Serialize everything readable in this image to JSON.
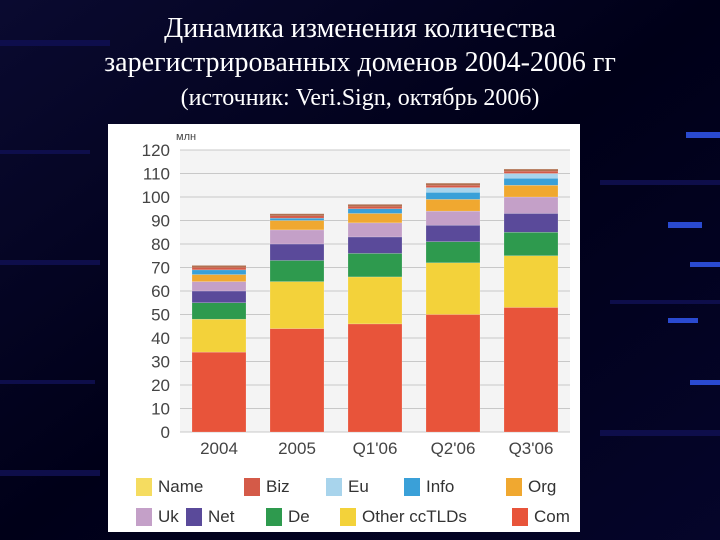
{
  "slide": {
    "title_line1": "Динамика изменения количества",
    "title_line2": "зарегистрированных доменов 2004-2006 гг",
    "subtitle": "(источник: Veri.Sign, октябрь 2006)"
  },
  "chart_data": {
    "type": "bar",
    "stacked": true,
    "ylabel": "млн",
    "ylim": [
      0,
      120
    ],
    "yticks": [
      0,
      10,
      20,
      30,
      40,
      50,
      60,
      70,
      80,
      90,
      100,
      110,
      120
    ],
    "grid": true,
    "legend_position": "bottom",
    "categories": [
      "2004",
      "2005",
      "Q1'06",
      "Q2'06",
      "Q3'06"
    ],
    "series": [
      {
        "name": "Com",
        "color": "#e8543a",
        "values": [
          34,
          44,
          46,
          50,
          53
        ]
      },
      {
        "name": "Other ccTLDs",
        "color": "#f3d23a",
        "values": [
          14,
          20,
          20,
          22,
          22
        ]
      },
      {
        "name": "De",
        "color": "#2e9a4e",
        "values": [
          7,
          9,
          10,
          9,
          10
        ]
      },
      {
        "name": "Net",
        "color": "#5a4a9a",
        "values": [
          5,
          7,
          7,
          7,
          8
        ]
      },
      {
        "name": "Uk",
        "color": "#c4a0c8",
        "values": [
          4,
          6,
          6,
          6,
          7
        ]
      },
      {
        "name": "Org",
        "color": "#f0a830",
        "values": [
          3,
          4,
          4,
          5,
          5
        ]
      },
      {
        "name": "Info",
        "color": "#3aa0d8",
        "values": [
          2,
          1,
          2,
          3,
          3
        ]
      },
      {
        "name": "Eu",
        "color": "#a8d4ec",
        "values": [
          0,
          0,
          0,
          2,
          2
        ]
      },
      {
        "name": "Biz",
        "color": "#d45a48",
        "values": [
          1,
          1,
          1,
          1,
          1
        ]
      },
      {
        "name": "Name",
        "color": "#f5dc60",
        "values": [
          0,
          0,
          0,
          0,
          0
        ]
      }
    ],
    "legend_rows": [
      [
        "Name",
        "Biz",
        "Eu",
        "Info",
        "Org"
      ],
      [
        "Uk",
        "Net",
        "De",
        "Other ccTLDs",
        "Com"
      ]
    ]
  }
}
